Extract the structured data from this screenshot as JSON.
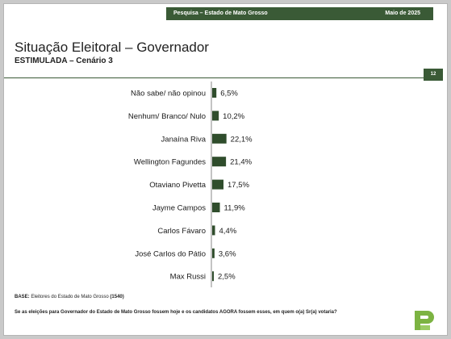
{
  "header": {
    "survey": "Pesquisa – Estado de Mato Grosso",
    "date": "Maio de 2025"
  },
  "title": "Situação Eleitoral – Governador",
  "subtitle": "ESTIMULADA – Cenário 3",
  "page_number": "12",
  "footer": {
    "base_label": "BASE:",
    "base_text": "Eleitores do Estado de Mato Grosso",
    "base_count": "(1540)",
    "question": "Se as eleições para Governador do Estado de Mato Grosso fossem hoje e os candidatos AGORA fossem esses, em quem o(a) Sr(a) votaria?"
  },
  "colors": {
    "accent": "#3a5a36",
    "bar": "#2f4d2c"
  },
  "logo_icon": "green-p-logo-icon",
  "chart_data": {
    "type": "bar",
    "orientation": "horizontal",
    "categories": [
      "Não sabe/ não opinou",
      "Nenhum/ Branco/ Nulo",
      "Janaína Riva",
      "Wellington Fagundes",
      "Otaviano Pivetta",
      "Jayme Campos",
      "Carlos Fávaro",
      "José Carlos do Pátio",
      "Max Russi"
    ],
    "values": [
      6.5,
      10.2,
      22.1,
      21.4,
      17.5,
      11.9,
      4.4,
      3.6,
      2.5
    ],
    "value_labels": [
      "6,5%",
      "10,2%",
      "22,1%",
      "21,4%",
      "17,5%",
      "11,9%",
      "4,4%",
      "3,6%",
      "2,5%"
    ],
    "unit": "%",
    "legend": "none",
    "grid": false
  }
}
